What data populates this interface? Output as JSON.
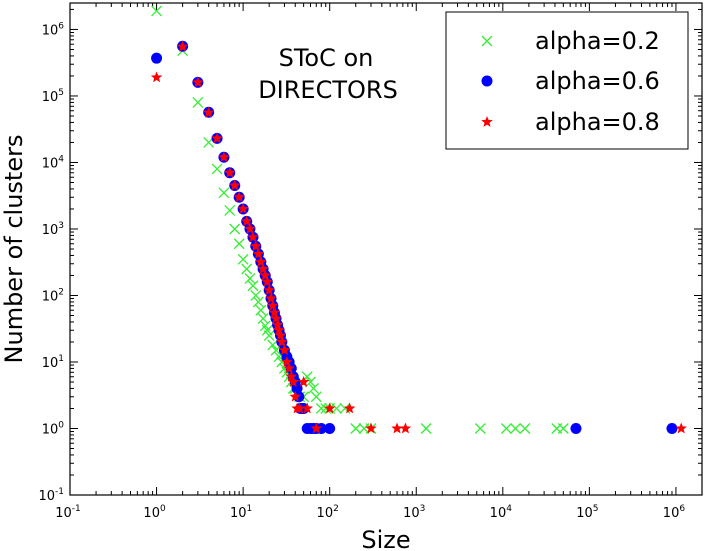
{
  "chart_data": {
    "type": "scatter",
    "title": "",
    "annotation": [
      "SToC on",
      "DIRECTORS"
    ],
    "xlabel": "Size",
    "ylabel": "Number of clusters",
    "xscale": "log",
    "yscale": "log",
    "xlim": [
      0.1,
      2000000
    ],
    "ylim": [
      0.1,
      2500000
    ],
    "x_ticks": [
      {
        "value": 0.1,
        "base": "10",
        "exp": "-1"
      },
      {
        "value": 1,
        "base": "10",
        "exp": "0"
      },
      {
        "value": 10,
        "base": "10",
        "exp": "1"
      },
      {
        "value": 100,
        "base": "10",
        "exp": "2"
      },
      {
        "value": 1000,
        "base": "10",
        "exp": "3"
      },
      {
        "value": 10000,
        "base": "10",
        "exp": "4"
      },
      {
        "value": 100000,
        "base": "10",
        "exp": "5"
      },
      {
        "value": 1000000,
        "base": "10",
        "exp": "6"
      }
    ],
    "y_ticks": [
      {
        "value": 0.1,
        "base": "10",
        "exp": "-1"
      },
      {
        "value": 1,
        "base": "10",
        "exp": "0"
      },
      {
        "value": 10,
        "base": "10",
        "exp": "1"
      },
      {
        "value": 100,
        "base": "10",
        "exp": "2"
      },
      {
        "value": 1000,
        "base": "10",
        "exp": "3"
      },
      {
        "value": 10000,
        "base": "10",
        "exp": "4"
      },
      {
        "value": 100000,
        "base": "10",
        "exp": "5"
      },
      {
        "value": 1000000,
        "base": "10",
        "exp": "6"
      }
    ],
    "grid": false,
    "legend_position": "top-right",
    "series": [
      {
        "name": "alpha=0.2",
        "marker": "x",
        "color": "#33ee33",
        "points": [
          [
            1,
            1900000
          ],
          [
            2,
            480000
          ],
          [
            3,
            80000
          ],
          [
            4,
            20000
          ],
          [
            5,
            8000
          ],
          [
            6,
            3500
          ],
          [
            7,
            1900
          ],
          [
            8,
            1000
          ],
          [
            9,
            600
          ],
          [
            10,
            350
          ],
          [
            11,
            250
          ],
          [
            12,
            180
          ],
          [
            13,
            140
          ],
          [
            14,
            100
          ],
          [
            15,
            80
          ],
          [
            16,
            60
          ],
          [
            17,
            45
          ],
          [
            18,
            35
          ],
          [
            19,
            30
          ],
          [
            20,
            25
          ],
          [
            22,
            18
          ],
          [
            24,
            15
          ],
          [
            26,
            12
          ],
          [
            28,
            10
          ],
          [
            30,
            8
          ],
          [
            32,
            7
          ],
          [
            34,
            6
          ],
          [
            36,
            5
          ],
          [
            38,
            4
          ],
          [
            40,
            4
          ],
          [
            45,
            3
          ],
          [
            50,
            3
          ],
          [
            55,
            6
          ],
          [
            60,
            5
          ],
          [
            65,
            4
          ],
          [
            70,
            3
          ],
          [
            80,
            2
          ],
          [
            90,
            2
          ],
          [
            100,
            2
          ],
          [
            120,
            2
          ],
          [
            150,
            2
          ],
          [
            200,
            1
          ],
          [
            250,
            1
          ],
          [
            300,
            1
          ],
          [
            1300,
            1
          ],
          [
            5500,
            1
          ],
          [
            11000,
            1
          ],
          [
            14000,
            1
          ],
          [
            18000,
            1
          ],
          [
            42000,
            1
          ],
          [
            50000,
            1
          ]
        ]
      },
      {
        "name": "alpha=0.6",
        "marker": "circle",
        "color": "#0000ff",
        "points": [
          [
            1,
            370000
          ],
          [
            2,
            560000
          ],
          [
            3,
            160000
          ],
          [
            4,
            57000
          ],
          [
            5,
            23000
          ],
          [
            6,
            12000
          ],
          [
            7,
            7000
          ],
          [
            8,
            4500
          ],
          [
            9,
            3000
          ],
          [
            10,
            2000
          ],
          [
            11,
            1300
          ],
          [
            12,
            1000
          ],
          [
            13,
            750
          ],
          [
            14,
            550
          ],
          [
            15,
            420
          ],
          [
            16,
            320
          ],
          [
            17,
            250
          ],
          [
            18,
            200
          ],
          [
            19,
            160
          ],
          [
            20,
            120
          ],
          [
            21,
            90
          ],
          [
            22,
            70
          ],
          [
            23,
            55
          ],
          [
            24,
            45
          ],
          [
            25,
            36
          ],
          [
            26,
            30
          ],
          [
            27,
            25
          ],
          [
            28,
            20
          ],
          [
            30,
            15
          ],
          [
            32,
            12
          ],
          [
            34,
            10
          ],
          [
            36,
            8
          ],
          [
            38,
            6
          ],
          [
            40,
            5
          ],
          [
            42,
            4
          ],
          [
            44,
            3
          ],
          [
            46,
            2
          ],
          [
            48,
            2
          ],
          [
            50,
            2
          ],
          [
            55,
            1
          ],
          [
            60,
            1
          ],
          [
            65,
            1
          ],
          [
            70,
            1
          ],
          [
            80,
            1
          ],
          [
            100,
            1
          ],
          [
            70000,
            1
          ],
          [
            900000,
            1
          ]
        ]
      },
      {
        "name": "alpha=0.8",
        "marker": "star",
        "color": "#ff0000",
        "points": [
          [
            1,
            190000
          ],
          [
            2,
            550000
          ],
          [
            3,
            160000
          ],
          [
            4,
            56000
          ],
          [
            5,
            23000
          ],
          [
            6,
            12000
          ],
          [
            7,
            7000
          ],
          [
            8,
            4500
          ],
          [
            9,
            3000
          ],
          [
            10,
            2000
          ],
          [
            11,
            1300
          ],
          [
            12,
            1000
          ],
          [
            13,
            750
          ],
          [
            14,
            550
          ],
          [
            15,
            420
          ],
          [
            16,
            320
          ],
          [
            17,
            250
          ],
          [
            18,
            200
          ],
          [
            19,
            160
          ],
          [
            20,
            120
          ],
          [
            21,
            90
          ],
          [
            22,
            70
          ],
          [
            23,
            55
          ],
          [
            24,
            45
          ],
          [
            25,
            36
          ],
          [
            26,
            30
          ],
          [
            27,
            25
          ],
          [
            28,
            20
          ],
          [
            30,
            15
          ],
          [
            32,
            10
          ],
          [
            34,
            8
          ],
          [
            36,
            6
          ],
          [
            38,
            5
          ],
          [
            40,
            3
          ],
          [
            42,
            2
          ],
          [
            45,
            2
          ],
          [
            50,
            5
          ],
          [
            55,
            2
          ],
          [
            70,
            1
          ],
          [
            100,
            2
          ],
          [
            170,
            2
          ],
          [
            300,
            1
          ],
          [
            600,
            1
          ],
          [
            750,
            1
          ],
          [
            1150000,
            1
          ]
        ]
      }
    ]
  }
}
